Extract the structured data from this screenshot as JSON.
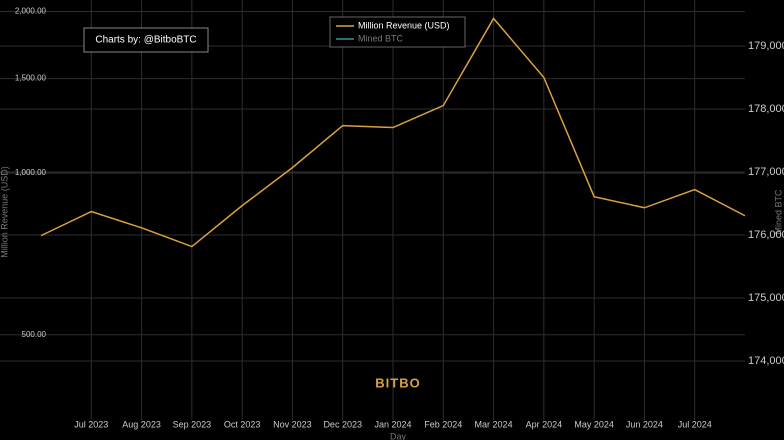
{
  "chart_data": {
    "type": "line",
    "annotation": "Charts by: @BitboBTC",
    "watermark": "BITBO",
    "x_label": "Day",
    "y_label": "Million Revenue (USD)",
    "y2_label": "Mined BTC",
    "categories": [
      null,
      "Jul 2023",
      "Aug 2023",
      "Sep 2023",
      "Oct 2023",
      "Nov 2023",
      "Dec 2023",
      "Jan 2024",
      "Feb 2024",
      "Mar 2024",
      "Apr 2024",
      "May 2024",
      "Jun 2024",
      "Jul 2024",
      null
    ],
    "series": [
      {
        "name": "Million Revenue (USD)",
        "color": "#d9a23c",
        "values": [
          765,
          848,
          791,
          730,
          870,
          1024,
          1226,
          1216,
          1336,
          1941,
          1507,
          904,
          862,
          932,
          833
        ]
      },
      {
        "name": "Mined BTC",
        "color": "#3a8fa0",
        "axis": "y2",
        "values": [
          null,
          null,
          null,
          null,
          null,
          null,
          null,
          null,
          null,
          null,
          null,
          null,
          null,
          null,
          null
        ]
      }
    ],
    "log_scale": true,
    "grid": true,
    "legend": "top",
    "ylim": [
      347,
      2030
    ],
    "yticks": [
      {
        "value": 500,
        "label": "500.00"
      },
      {
        "value": 1000,
        "label": "1,000.00"
      },
      {
        "value": 1500,
        "label": "1,500.00"
      },
      {
        "value": 2000,
        "label": "2,000.00"
      }
    ],
    "y2lim": [
      173063,
      179603
    ],
    "y2ticks": [
      {
        "value": 174000,
        "label": "174,000"
      },
      {
        "value": 175000,
        "label": "175,000"
      },
      {
        "value": 176000,
        "label": "176,000"
      },
      {
        "value": 177000,
        "label": "177,000"
      },
      {
        "value": 178000,
        "label": "178,000"
      },
      {
        "value": 179000,
        "label": "179,000"
      }
    ]
  }
}
